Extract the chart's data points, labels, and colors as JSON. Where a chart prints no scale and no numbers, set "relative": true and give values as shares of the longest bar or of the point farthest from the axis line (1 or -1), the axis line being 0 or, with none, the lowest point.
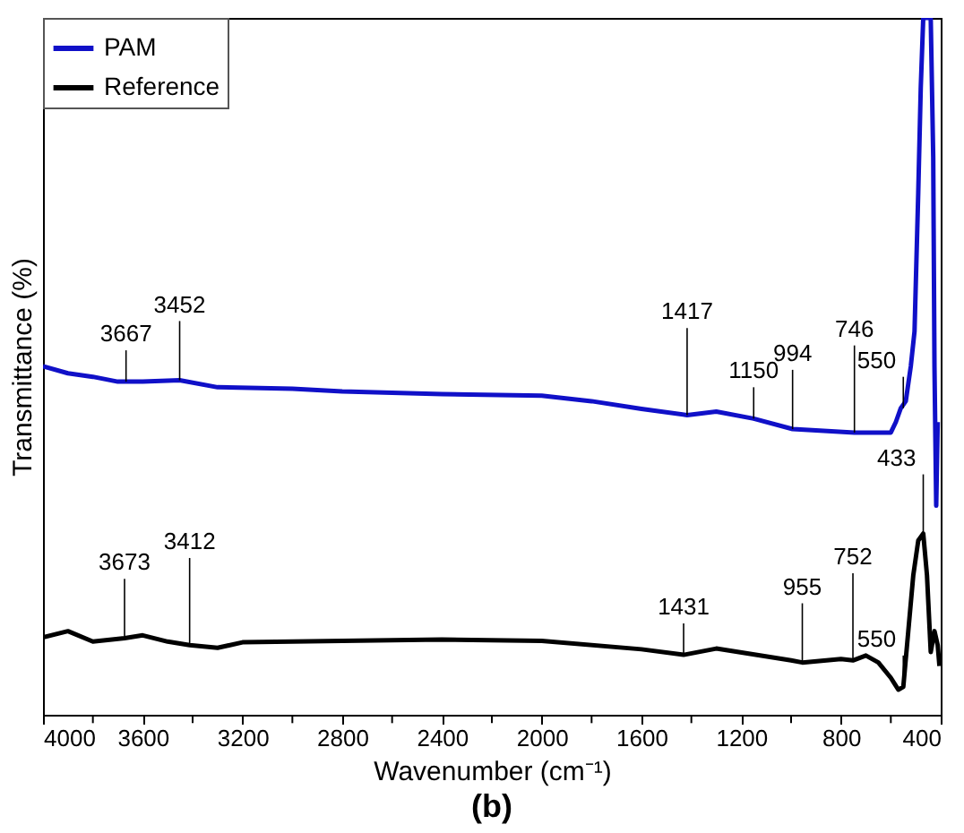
{
  "chart_data": {
    "type": "line",
    "title": "(b)",
    "xlabel": "Wavenumber (cm⁻¹)",
    "ylabel": "Transmittance (%)",
    "relative": true,
    "xlim": [
      4000,
      400
    ],
    "xticks": [
      4000,
      {
        "value": 3800,
        "label": null
      },
      3600,
      {
        "value": 3400,
        "label": null
      },
      3200,
      {
        "value": 3000,
        "label": null
      },
      2800,
      {
        "value": 2600,
        "label": null
      },
      2400,
      {
        "value": 2200,
        "label": null
      },
      2000,
      {
        "value": 1800,
        "label": null
      },
      1600,
      {
        "value": 1400,
        "label": null
      },
      1200,
      {
        "value": 1000,
        "label": null
      },
      800,
      {
        "value": 600,
        "label": null
      },
      400
    ],
    "tick_labels": "x",
    "grid": false,
    "legend": "top left",
    "line_style": "solid",
    "marker": "none",
    "series": [
      {
        "name": "PAM",
        "color": "#1010c8",
        "x": [
          4000,
          3900,
          3800,
          3700,
          3600,
          3452,
          3300,
          3000,
          2800,
          2400,
          2000,
          1800,
          1600,
          1417,
          1300,
          1150,
          994,
          900,
          746,
          650,
          600,
          580,
          560,
          540,
          520,
          505,
          490,
          480,
          470,
          455,
          440,
          430,
          425,
          418,
          412
        ],
        "values": [
          0.5,
          0.49,
          0.485,
          0.478,
          0.478,
          0.48,
          0.47,
          0.468,
          0.464,
          0.46,
          0.458,
          0.45,
          0.439,
          0.43,
          0.435,
          0.425,
          0.41,
          0.408,
          0.405,
          0.405,
          0.405,
          0.42,
          0.44,
          0.45,
          0.5,
          0.55,
          0.75,
          0.9,
          1,
          1,
          1,
          0.8,
          0.5,
          0.3,
          0.42
        ]
      },
      {
        "name": "Reference",
        "color": "#000000",
        "x": [
          4000,
          3900,
          3800,
          3673,
          3600,
          3500,
          3412,
          3300,
          3200,
          2800,
          2400,
          2000,
          1600,
          1431,
          1300,
          1000,
          955,
          800,
          752,
          700,
          650,
          600,
          570,
          550,
          530,
          510,
          490,
          470,
          455,
          440,
          425,
          412,
          405
        ],
        "values": [
          0.111,
          0.12,
          0.105,
          0.11,
          0.114,
          0.105,
          0.1,
          0.096,
          0.104,
          0.106,
          0.108,
          0.106,
          0.094,
          0.086,
          0.095,
          0.078,
          0.075,
          0.08,
          0.078,
          0.085,
          0.075,
          0.053,
          0.036,
          0.04,
          0.12,
          0.2,
          0.25,
          0.26,
          0.2,
          0.09,
          0.12,
          0.1,
          0.07
        ]
      }
    ],
    "annotations": [
      {
        "text": "3667",
        "x": 3667,
        "y": 0.478
      },
      {
        "text": "3452",
        "x": 3452,
        "y": 0.48
      },
      {
        "text": "1417",
        "x": 1417,
        "y": 0.43
      },
      {
        "text": "1150",
        "x": 1150,
        "y": 0.425
      },
      {
        "text": "994",
        "x": 994,
        "y": 0.41
      },
      {
        "text": "746",
        "x": 746,
        "y": 0.405
      },
      {
        "text": "550",
        "x": 550,
        "y": 0.44
      },
      {
        "text": "3673",
        "x": 3673,
        "y": 0.11
      },
      {
        "text": "3412",
        "x": 3412,
        "y": 0.1
      },
      {
        "text": "1431",
        "x": 1431,
        "y": 0.086
      },
      {
        "text": "955",
        "x": 955,
        "y": 0.075
      },
      {
        "text": "752",
        "x": 752,
        "y": 0.078
      },
      {
        "text": "550",
        "x": 550,
        "y": 0.04
      },
      {
        "text": "433",
        "x": 470,
        "y": 0.26
      }
    ]
  }
}
